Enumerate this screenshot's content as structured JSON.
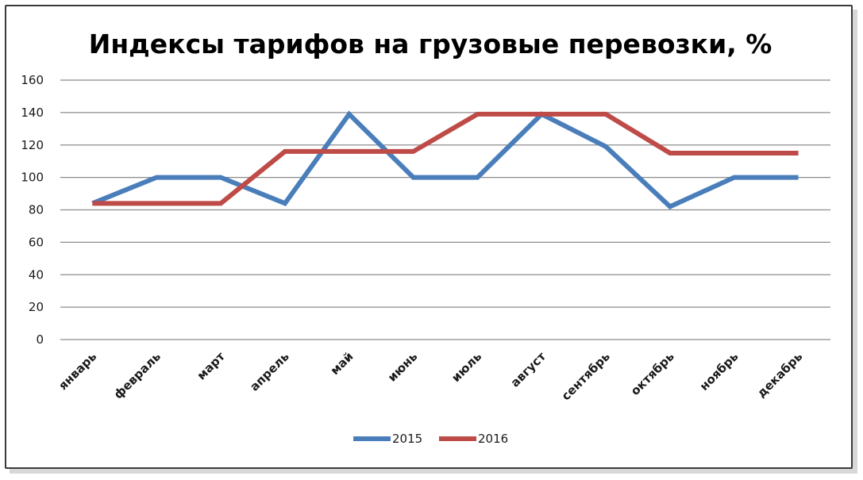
{
  "chart_data": {
    "type": "line",
    "title": "Индексы тарифов на грузовые перевозки, %",
    "xlabel": "",
    "ylabel": "",
    "ylim": [
      0,
      160
    ],
    "yticks": [
      "0",
      "20",
      "40",
      "60",
      "80",
      "100",
      "120",
      "140",
      "160"
    ],
    "categories": [
      "январь",
      "февраль",
      "март",
      "апрель",
      "май",
      "июнь",
      "июль",
      "август",
      "сентябрь",
      "октябрь",
      "ноябрь",
      "декабрь"
    ],
    "series": [
      {
        "name": "2015",
        "color": "#4a7ebb",
        "values": [
          84,
          100,
          100,
          84,
          139,
          100,
          100,
          139,
          119,
          82,
          100,
          100
        ]
      },
      {
        "name": "2016",
        "color": "#be4b48",
        "values": [
          84,
          84,
          84,
          116,
          116,
          116,
          139,
          139,
          139,
          115,
          115,
          115
        ]
      }
    ],
    "grid": true,
    "legend_position": "bottom"
  }
}
